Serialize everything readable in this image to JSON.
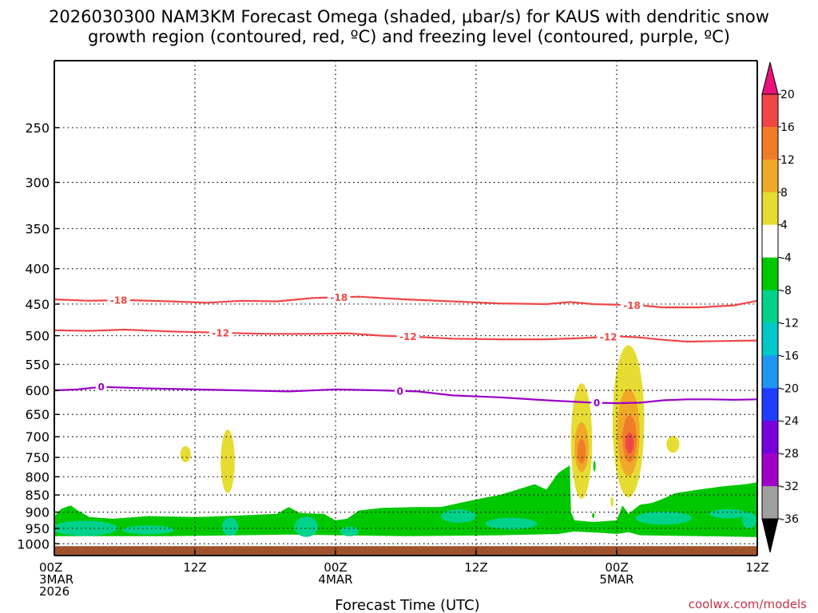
{
  "chart_data": {
    "type": "contour",
    "title_line1": "2026030300 NAM3KM Forecast Omega (shaded, μbar/s) for KAUS with dendritic snow",
    "title_line2": "growth region (contoured, red, ºC) and freezing level (contoured, purple, ºC)",
    "xlabel": "Forecast Time (UTC)",
    "credit": "coolwx.com/models",
    "xlim_hours": [
      0,
      60
    ],
    "x_ticks": [
      {
        "hour": 0,
        "lines": [
          "00Z",
          "3MAR",
          "2026"
        ]
      },
      {
        "hour": 12,
        "lines": [
          "12Z"
        ]
      },
      {
        "hour": 24,
        "lines": [
          "00Z",
          "4MAR"
        ]
      },
      {
        "hour": 36,
        "lines": [
          "12Z"
        ]
      },
      {
        "hour": 48,
        "lines": [
          "00Z",
          "5MAR"
        ]
      },
      {
        "hour": 60,
        "lines": [
          "12Z"
        ]
      }
    ],
    "ylabel": "",
    "y_ticks": [
      250,
      300,
      350,
      400,
      450,
      500,
      550,
      600,
      650,
      700,
      750,
      800,
      850,
      900,
      950,
      1000
    ],
    "ylim_mb": [
      200,
      1040
    ],
    "surface_pressure_mb": 1008,
    "colorbar": {
      "labels": [
        "20",
        "16",
        "12",
        "8",
        "4",
        "-4",
        "-8",
        "-12",
        "-16",
        "-20",
        "-24",
        "-28",
        "-32",
        "-36"
      ],
      "levels": [
        20,
        16,
        12,
        8,
        4,
        -4,
        -8,
        -12,
        -16,
        -20,
        -24,
        -28,
        -32,
        -36
      ],
      "top_color": "#e8127a",
      "bottom_color": "#000000",
      "bands": [
        {
          "from": 16,
          "to": 20,
          "color": "#f04646"
        },
        {
          "from": 12,
          "to": 16,
          "color": "#f07c28"
        },
        {
          "from": 8,
          "to": 12,
          "color": "#f0a828"
        },
        {
          "from": 4,
          "to": 8,
          "color": "#e6dc32"
        },
        {
          "from": -4,
          "to": 4,
          "color": "#ffffff"
        },
        {
          "from": -8,
          "to": -4,
          "color": "#00c800"
        },
        {
          "from": -12,
          "to": -8,
          "color": "#00d28c"
        },
        {
          "from": -16,
          "to": -12,
          "color": "#00c8c8"
        },
        {
          "from": -20,
          "to": -16,
          "color": "#1e96f0"
        },
        {
          "from": -24,
          "to": -20,
          "color": "#1e3cff"
        },
        {
          "from": -28,
          "to": -24,
          "color": "#7800dc"
        },
        {
          "from": -32,
          "to": -28,
          "color": "#a000c8"
        },
        {
          "from": -36,
          "to": -32,
          "color": "#a0a0a0"
        }
      ]
    },
    "contours": [
      {
        "name": "-18C isotherm",
        "label": "-18",
        "color": "#f04646",
        "points": [
          [
            0,
            443
          ],
          [
            3,
            445
          ],
          [
            6,
            444
          ],
          [
            10,
            446
          ],
          [
            13,
            448
          ],
          [
            16,
            445
          ],
          [
            19,
            446
          ],
          [
            22,
            441
          ],
          [
            26,
            439
          ],
          [
            30,
            443
          ],
          [
            34,
            446
          ],
          [
            38,
            449
          ],
          [
            42,
            450
          ],
          [
            44,
            447
          ],
          [
            46,
            450
          ],
          [
            50,
            452
          ],
          [
            52,
            455
          ],
          [
            55,
            455
          ],
          [
            58,
            452
          ],
          [
            60,
            445
          ]
        ],
        "label_hours": [
          5.5,
          24.3,
          49.3
        ]
      },
      {
        "name": "-12C isotherm",
        "label": "-12",
        "color": "#f04646",
        "points": [
          [
            0,
            491
          ],
          [
            3,
            492
          ],
          [
            6,
            490
          ],
          [
            10,
            493
          ],
          [
            14,
            495
          ],
          [
            18,
            497
          ],
          [
            22,
            497
          ],
          [
            25,
            496
          ],
          [
            28,
            500
          ],
          [
            31,
            502
          ],
          [
            34,
            505
          ],
          [
            38,
            506
          ],
          [
            42,
            506
          ],
          [
            45,
            504
          ],
          [
            48,
            501
          ],
          [
            50,
            503
          ],
          [
            52,
            507
          ],
          [
            54,
            510
          ],
          [
            57,
            509
          ],
          [
            60,
            508
          ]
        ],
        "label_hours": [
          14.2,
          30.2,
          47.3
        ]
      },
      {
        "name": "0C freezing level",
        "label": "0",
        "color": "#9a00c8",
        "points": [
          [
            0,
            600
          ],
          [
            2,
            598
          ],
          [
            4,
            593
          ],
          [
            8,
            596
          ],
          [
            12,
            598
          ],
          [
            16,
            600
          ],
          [
            20,
            602
          ],
          [
            24,
            598
          ],
          [
            28,
            600
          ],
          [
            31,
            602
          ],
          [
            34,
            610
          ],
          [
            38,
            614
          ],
          [
            42,
            620
          ],
          [
            46,
            625
          ],
          [
            48,
            626
          ],
          [
            50,
            625
          ],
          [
            52,
            620
          ],
          [
            54,
            618
          ],
          [
            56,
            618
          ],
          [
            58,
            619
          ],
          [
            60,
            618
          ]
        ],
        "label_hours": [
          4.0,
          29.5,
          46.3
        ]
      }
    ],
    "shaded_regions": [
      {
        "omega": 6,
        "color": "#e6dc32",
        "center": [
          11.2,
          742
        ],
        "half_width_hours": 0.45,
        "half_height_mb": 20
      },
      {
        "omega": 6,
        "color": "#e6dc32",
        "center": [
          14.8,
          760
        ],
        "half_width_hours": 0.6,
        "half_height_mb": 80
      },
      {
        "omega": 6,
        "color": "#e6dc32",
        "center": [
          45.0,
          710
        ],
        "half_width_hours": 0.9,
        "half_height_mb": 135
      },
      {
        "omega": 10,
        "color": "#f0a828",
        "center": [
          45.0,
          725
        ],
        "half_width_hours": 0.6,
        "half_height_mb": 60
      },
      {
        "omega": 14,
        "color": "#f07c28",
        "center": [
          45.0,
          735
        ],
        "half_width_hours": 0.35,
        "half_height_mb": 30
      },
      {
        "omega": 6,
        "color": "#e6dc32",
        "center": [
          49.0,
          665
        ],
        "half_width_hours": 1.35,
        "half_height_mb": 165
      },
      {
        "omega": 10,
        "color": "#f0a828",
        "center": [
          49.0,
          690
        ],
        "half_width_hours": 0.95,
        "half_height_mb": 100
      },
      {
        "omega": 14,
        "color": "#f07c28",
        "center": [
          49.1,
          705
        ],
        "half_width_hours": 0.6,
        "half_height_mb": 55
      },
      {
        "omega": 18,
        "color": "#f04646",
        "center": [
          49.1,
          715
        ],
        "half_width_hours": 0.35,
        "half_height_mb": 25
      },
      {
        "omega": 6,
        "color": "#e6dc32",
        "center": [
          47.6,
          870
        ],
        "half_width_hours": 0.12,
        "half_height_mb": 15
      },
      {
        "omega": 6,
        "color": "#e6dc32",
        "center": [
          52.8,
          718
        ],
        "half_width_hours": 0.55,
        "half_height_mb": 20
      },
      {
        "omega": -6,
        "color": "#00c800",
        "center": [
          46.1,
          772
        ],
        "half_width_hours": 0.1,
        "half_height_mb": 14
      },
      {
        "omega": -6,
        "color": "#00c800",
        "center": [
          46.0,
          910
        ],
        "half_width_hours": 0.1,
        "half_height_mb": 8
      }
    ],
    "low_level_sink": {
      "omega": -6,
      "color": "#00c800",
      "top_profile_mb": [
        [
          0,
          912
        ],
        [
          0.6,
          890
        ],
        [
          1.4,
          880
        ],
        [
          2.0,
          895
        ],
        [
          3.0,
          915
        ],
        [
          5,
          920
        ],
        [
          8,
          912
        ],
        [
          12,
          915
        ],
        [
          16,
          910
        ],
        [
          19,
          905
        ],
        [
          20,
          885
        ],
        [
          21,
          903
        ],
        [
          23,
          905
        ],
        [
          24,
          925
        ],
        [
          25,
          920
        ],
        [
          26,
          895
        ],
        [
          28,
          887
        ],
        [
          31,
          885
        ],
        [
          33,
          885
        ],
        [
          35,
          870
        ],
        [
          37,
          856
        ],
        [
          38,
          850
        ],
        [
          39,
          840
        ],
        [
          41,
          820
        ],
        [
          42,
          835
        ],
        [
          43,
          790
        ],
        [
          44,
          770
        ],
        [
          44.1,
          900
        ],
        [
          44.4,
          925
        ],
        [
          46,
          930
        ],
        [
          48,
          925
        ],
        [
          48.5,
          880
        ],
        [
          49,
          905
        ],
        [
          50,
          878
        ],
        [
          51,
          873
        ],
        [
          52,
          860
        ],
        [
          53,
          845
        ],
        [
          55,
          835
        ],
        [
          57,
          826
        ],
        [
          59,
          820
        ],
        [
          60,
          815
        ]
      ],
      "bottom_profile_mb": [
        [
          0,
          975
        ],
        [
          10,
          975
        ],
        [
          20,
          970
        ],
        [
          30,
          975
        ],
        [
          38,
          972
        ],
        [
          43,
          968
        ],
        [
          44.4,
          960
        ],
        [
          47,
          965
        ],
        [
          48,
          968
        ],
        [
          49,
          962
        ],
        [
          50,
          972
        ],
        [
          55,
          975
        ],
        [
          60,
          978
        ]
      ]
    },
    "low_level_sink_2": {
      "omega": -10,
      "color": "#00d28c",
      "patches": [
        {
          "center": [
            2.6,
            950
          ],
          "half_width_hours": 2.8,
          "half_height_mb": 24
        },
        {
          "center": [
            8.0,
            955
          ],
          "half_width_hours": 2.2,
          "half_height_mb": 14
        },
        {
          "center": [
            15.0,
            945
          ],
          "half_width_hours": 0.7,
          "half_height_mb": 28
        },
        {
          "center": [
            21.5,
            945
          ],
          "half_width_hours": 1.0,
          "half_height_mb": 32
        },
        {
          "center": [
            25.2,
            960
          ],
          "half_width_hours": 0.8,
          "half_height_mb": 15
        },
        {
          "center": [
            34.5,
            912
          ],
          "half_width_hours": 1.5,
          "half_height_mb": 20
        },
        {
          "center": [
            39.0,
            935
          ],
          "half_width_hours": 2.2,
          "half_height_mb": 18
        },
        {
          "center": [
            52.0,
            918
          ],
          "half_width_hours": 2.4,
          "half_height_mb": 20
        },
        {
          "center": [
            57.5,
            905
          ],
          "half_width_hours": 1.6,
          "half_height_mb": 14
        },
        {
          "center": [
            59.3,
            925
          ],
          "half_width_hours": 0.6,
          "half_height_mb": 25
        }
      ]
    }
  }
}
